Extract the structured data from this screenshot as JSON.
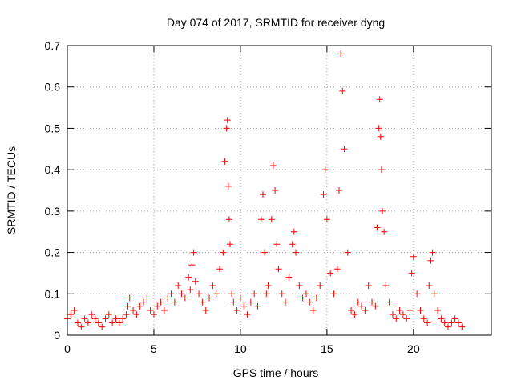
{
  "chart_data": {
    "type": "scatter",
    "title": "Day 074 of 2017, SRMTID for receiver dyng",
    "xlabel": "GPS time / hours",
    "ylabel": "SRMTID / TECUs",
    "xlim": [
      0,
      24.5
    ],
    "ylim": [
      0,
      0.7
    ],
    "xticks": [
      0,
      5,
      10,
      15,
      20
    ],
    "xtick_labels": [
      "0",
      "5",
      "10",
      "15",
      "20"
    ],
    "yticks": [
      0,
      0.1,
      0.2,
      0.3,
      0.4,
      0.5,
      0.6,
      0.7
    ],
    "ytick_labels": [
      "0",
      "0.1",
      "0.2",
      "0.3",
      "0.4",
      "0.5",
      "0.6",
      "0.7"
    ],
    "grid": true,
    "marker": "+",
    "color": "#ff0000",
    "series": [
      {
        "name": "SRMTID",
        "x": [
          0.0,
          0.2,
          0.4,
          0.6,
          0.8,
          1.0,
          1.2,
          1.4,
          1.6,
          1.8,
          2.0,
          2.2,
          2.4,
          2.6,
          2.8,
          3.0,
          3.2,
          3.4,
          3.5,
          3.6,
          3.8,
          4.0,
          4.2,
          4.4,
          4.6,
          4.8,
          5.0,
          5.2,
          5.4,
          5.6,
          5.8,
          6.0,
          6.2,
          6.4,
          6.6,
          6.8,
          7.0,
          7.1,
          7.2,
          7.3,
          7.4,
          7.6,
          7.8,
          8.0,
          8.2,
          8.4,
          8.6,
          8.8,
          9.0,
          9.1,
          9.2,
          9.25,
          9.3,
          9.35,
          9.4,
          9.5,
          9.6,
          9.8,
          10.0,
          10.2,
          10.4,
          10.6,
          10.8,
          11.0,
          11.2,
          11.3,
          11.4,
          11.5,
          11.6,
          11.8,
          11.9,
          12.0,
          12.1,
          12.2,
          12.4,
          12.6,
          12.8,
          13.0,
          13.1,
          13.2,
          13.4,
          13.6,
          13.8,
          14.0,
          14.2,
          14.4,
          14.6,
          14.8,
          14.9,
          15.0,
          15.2,
          15.4,
          15.6,
          15.7,
          15.8,
          15.9,
          16.0,
          16.2,
          16.4,
          16.6,
          16.8,
          17.0,
          17.2,
          17.4,
          17.6,
          17.8,
          17.9,
          18.0,
          18.05,
          18.1,
          18.15,
          18.2,
          18.3,
          18.4,
          18.6,
          18.8,
          19.0,
          19.2,
          19.4,
          19.6,
          19.8,
          19.9,
          20.0,
          20.2,
          20.4,
          20.6,
          20.8,
          20.9,
          21.0,
          21.1,
          21.2,
          21.4,
          21.6,
          21.8,
          22.0,
          22.2,
          22.4,
          22.6,
          22.8
        ],
        "y": [
          0.04,
          0.05,
          0.06,
          0.03,
          0.02,
          0.04,
          0.03,
          0.05,
          0.04,
          0.03,
          0.02,
          0.04,
          0.05,
          0.03,
          0.04,
          0.03,
          0.04,
          0.05,
          0.07,
          0.09,
          0.06,
          0.05,
          0.07,
          0.08,
          0.09,
          0.06,
          0.05,
          0.07,
          0.08,
          0.06,
          0.09,
          0.1,
          0.08,
          0.12,
          0.1,
          0.09,
          0.14,
          0.11,
          0.17,
          0.2,
          0.13,
          0.1,
          0.08,
          0.06,
          0.09,
          0.12,
          0.1,
          0.16,
          0.2,
          0.42,
          0.5,
          0.52,
          0.36,
          0.28,
          0.22,
          0.1,
          0.08,
          0.06,
          0.09,
          0.07,
          0.05,
          0.08,
          0.1,
          0.07,
          0.28,
          0.34,
          0.2,
          0.1,
          0.12,
          0.28,
          0.41,
          0.35,
          0.22,
          0.16,
          0.1,
          0.08,
          0.14,
          0.22,
          0.25,
          0.2,
          0.12,
          0.09,
          0.1,
          0.08,
          0.06,
          0.09,
          0.12,
          0.34,
          0.4,
          0.28,
          0.15,
          0.1,
          0.16,
          0.35,
          0.68,
          0.59,
          0.45,
          0.2,
          0.06,
          0.05,
          0.08,
          0.07,
          0.06,
          0.12,
          0.08,
          0.07,
          0.26,
          0.5,
          0.57,
          0.48,
          0.4,
          0.3,
          0.25,
          0.12,
          0.08,
          0.05,
          0.04,
          0.06,
          0.05,
          0.04,
          0.06,
          0.15,
          0.19,
          0.1,
          0.06,
          0.04,
          0.03,
          0.12,
          0.18,
          0.2,
          0.1,
          0.06,
          0.04,
          0.03,
          0.02,
          0.03,
          0.04,
          0.03,
          0.02
        ]
      }
    ]
  }
}
